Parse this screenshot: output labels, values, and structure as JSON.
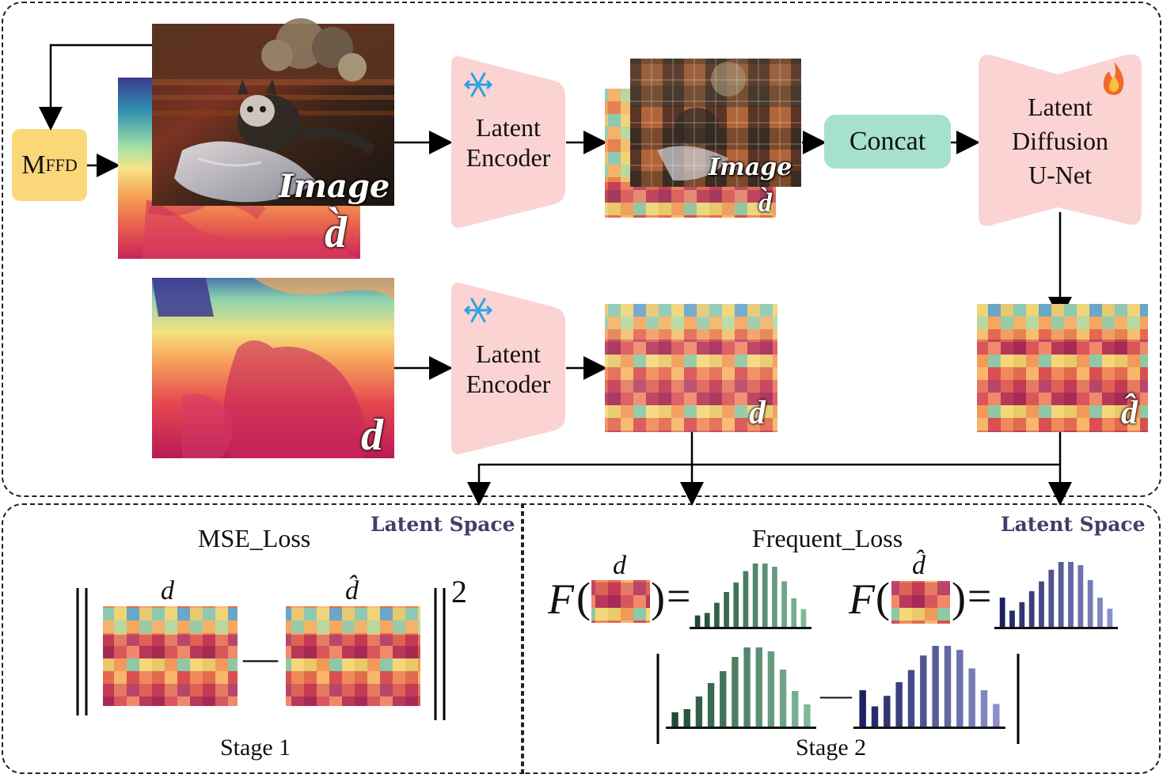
{
  "blocks": {
    "mffd_main": "M",
    "mffd_sub": "FFD",
    "encoder_top": [
      "Latent",
      "Encoder"
    ],
    "encoder_bottom": [
      "Latent",
      "Encoder"
    ],
    "concat": "Concat",
    "unet": [
      "Latent",
      "Diffusion",
      "U-Net"
    ]
  },
  "image_labels": {
    "image_top": "Image",
    "d_grave_top": "d̀",
    "image_latent": "Image",
    "d_grave_latent": "d̀",
    "d_gt": "d",
    "d_gt_latent": "d",
    "d_hat_latent": "d̂"
  },
  "bottom_left": {
    "title": "MSE_Loss",
    "space_label": "Latent Space",
    "d_label": "d",
    "d_hat_label": "d̂",
    "minus": "—",
    "exponent": "2",
    "stage": "Stage 1"
  },
  "bottom_right": {
    "title": "Frequent_Loss",
    "space_label": "Latent Space",
    "f_symbol": "F",
    "d_label": "d",
    "d_hat_label": "d̂",
    "equals": "=",
    "minus": "—",
    "stage": "Stage 2"
  },
  "icons": {
    "encoder_top": "snowflake-icon",
    "encoder_bottom": "snowflake-icon",
    "unet": "fire-icon"
  },
  "colors": {
    "block_pink": "#fcd3d3",
    "mffd_yellow": "#fad87a",
    "concat_teal": "#a6e0cf",
    "hist_green": "#4d8a6a",
    "hist_navy": "#2e3476",
    "latent_space_text": "#4a3a6a"
  }
}
